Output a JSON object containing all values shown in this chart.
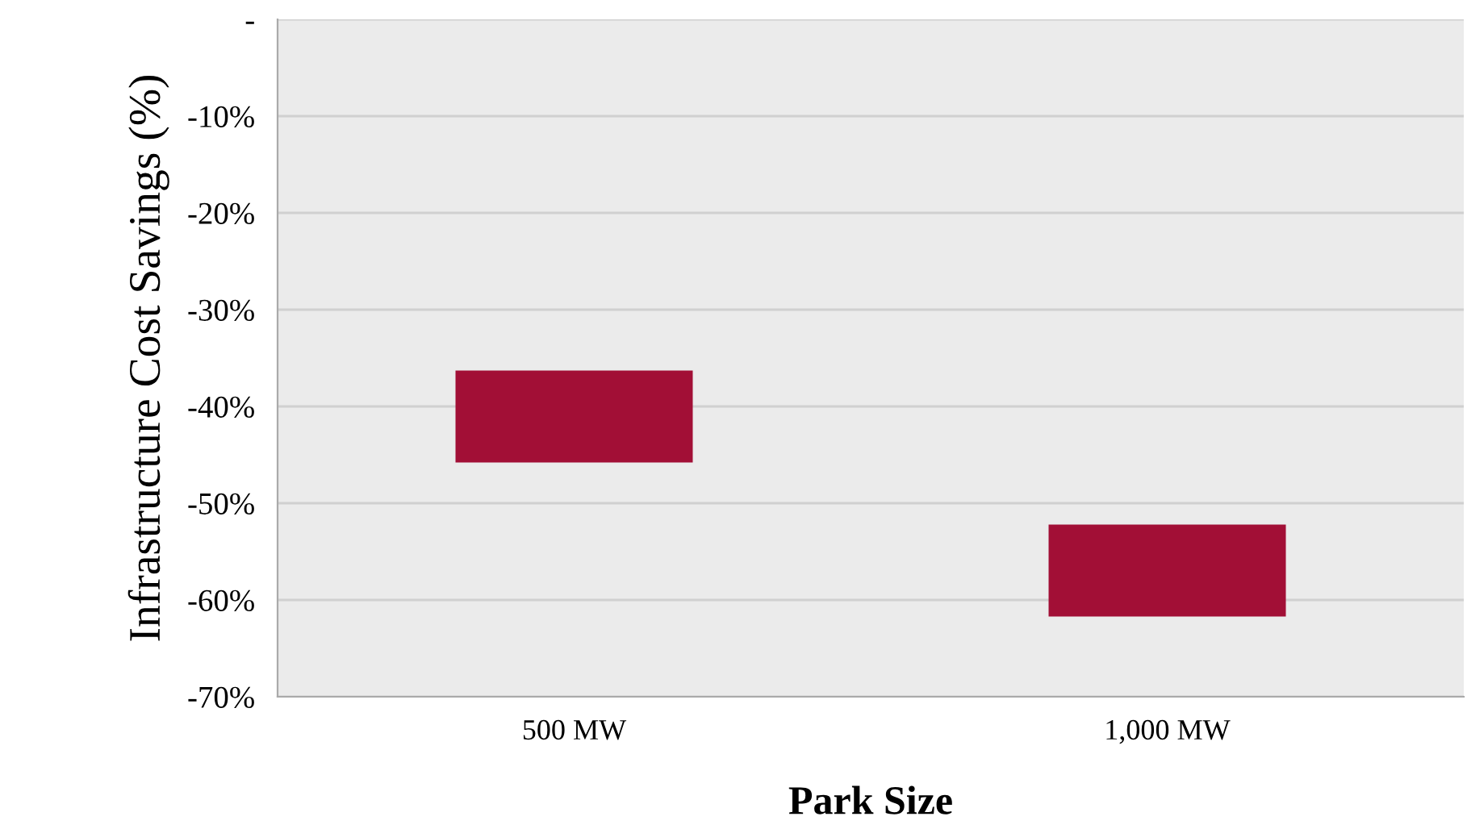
{
  "chart_data": {
    "type": "bar",
    "categories": [
      "500 MW",
      "1,000 MW"
    ],
    "values": [
      9.5,
      9.5
    ],
    "base": [
      -45.8,
      -61.7
    ],
    "color": "#a20f36",
    "xlabel": "Park Size",
    "ylabel": "Infrastructure Cost Savings (%)",
    "ylim": [
      -70,
      0
    ],
    "yticks": [
      {
        "value": -70,
        "label": "-70%"
      },
      {
        "value": -60,
        "label": "-60%"
      },
      {
        "value": -50,
        "label": "-50%"
      },
      {
        "value": -40,
        "label": "-40%"
      },
      {
        "value": -30,
        "label": "-30%"
      },
      {
        "value": -20,
        "label": "-20%"
      },
      {
        "value": -10,
        "label": "-10%"
      },
      {
        "value": 0,
        "label": "-"
      }
    ],
    "grid": "y"
  }
}
